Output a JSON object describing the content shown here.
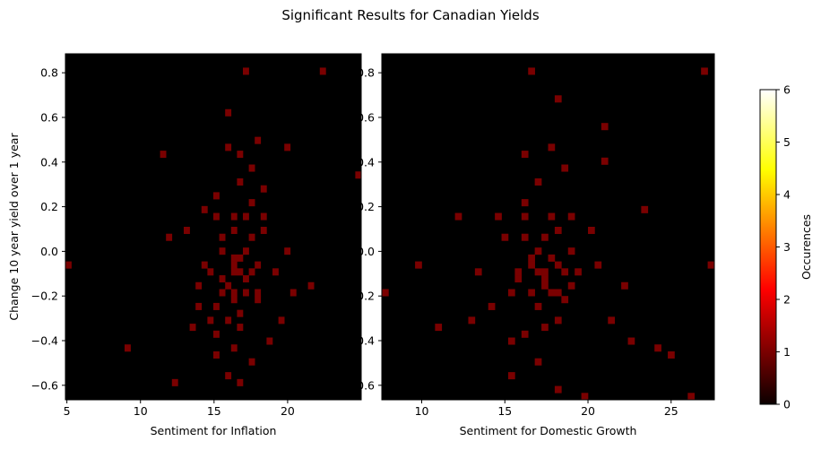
{
  "figure": {
    "title": "Significant Results for Canadian Yields"
  },
  "chart_data": [
    {
      "type": "heatmap",
      "xlabel": "Sentiment for Inflation",
      "ylabel": "Change 10 year yield over 1 year",
      "xlim": [
        4.9,
        25.0
      ],
      "ylim": [
        -0.665,
        0.885
      ],
      "xticks": [
        5,
        10,
        15,
        20
      ],
      "yticks": [
        -0.6,
        -0.4,
        -0.2,
        0.0,
        0.2,
        0.4,
        0.6,
        0.8
      ],
      "bins": [
        50,
        50
      ],
      "colormap": "hot",
      "points": [
        [
          15.5,
          0.0
        ],
        [
          16.2,
          -0.05
        ],
        [
          16.8,
          -0.1
        ],
        [
          17.3,
          -0.2
        ],
        [
          16.0,
          -0.15
        ],
        [
          15.2,
          -0.25
        ],
        [
          14.8,
          -0.1
        ],
        [
          17.8,
          -0.05
        ],
        [
          16.5,
          0.15
        ],
        [
          15.0,
          0.15
        ],
        [
          17.0,
          0.15
        ],
        [
          18.2,
          0.15
        ],
        [
          16.9,
          0.42
        ],
        [
          17.5,
          0.38
        ],
        [
          16.2,
          -0.42
        ],
        [
          15.8,
          -0.3
        ],
        [
          16.4,
          -0.08
        ],
        [
          17.1,
          -0.12
        ],
        [
          15.6,
          -0.18
        ],
        [
          18.0,
          -0.22
        ],
        [
          14.5,
          -0.05
        ],
        [
          13.8,
          -0.15
        ],
        [
          19.2,
          -0.1
        ],
        [
          20.0,
          0.0
        ],
        [
          21.5,
          -0.15
        ],
        [
          17.4,
          0.22
        ],
        [
          15.3,
          0.25
        ],
        [
          16.6,
          0.3
        ],
        [
          18.5,
          0.1
        ],
        [
          14.2,
          0.2
        ],
        [
          16.1,
          0.62
        ],
        [
          17.0,
          0.82
        ],
        [
          15.9,
          -0.55
        ],
        [
          16.8,
          -0.6
        ],
        [
          13.5,
          -0.35
        ],
        [
          19.5,
          -0.3
        ],
        [
          12.0,
          0.05
        ],
        [
          11.5,
          0.45
        ],
        [
          9.2,
          -0.42
        ],
        [
          5.0,
          -0.05
        ],
        [
          24.9,
          0.33
        ],
        [
          22.5,
          0.82
        ],
        [
          14.0,
          -0.25
        ],
        [
          18.8,
          -0.4
        ],
        [
          15.1,
          -0.45
        ],
        [
          16.3,
          -0.02
        ],
        [
          17.6,
          0.05
        ],
        [
          16.7,
          -0.28
        ],
        [
          15.4,
          -0.12
        ],
        [
          17.9,
          -0.18
        ],
        [
          16.5,
          -0.2
        ],
        [
          17.2,
          0.0
        ],
        [
          16.2,
          0.1
        ],
        [
          14.9,
          -0.32
        ],
        [
          18.3,
          0.28
        ],
        [
          13.2,
          0.1
        ],
        [
          20.5,
          -0.2
        ],
        [
          16.0,
          0.48
        ],
        [
          18.0,
          0.5
        ],
        [
          15.0,
          -0.38
        ],
        [
          16.9,
          -0.35
        ],
        [
          17.5,
          -0.48
        ],
        [
          12.5,
          -0.6
        ],
        [
          19.8,
          0.48
        ],
        [
          15.7,
          0.05
        ],
        [
          17.7,
          -0.08
        ],
        [
          16.4,
          -0.22
        ],
        [
          16.9,
          -0.04
        ]
      ]
    },
    {
      "type": "heatmap",
      "xlabel": "Sentiment for Domestic Growth",
      "ylabel": "Change 10 year yield over 1 year",
      "xlim": [
        7.6,
        27.6
      ],
      "ylim": [
        -0.665,
        0.885
      ],
      "xticks": [
        10,
        15,
        20,
        25
      ],
      "yticks": [
        -0.6,
        -0.4,
        -0.2,
        0.0,
        0.2,
        0.4,
        0.6,
        0.8
      ],
      "bins": [
        50,
        50
      ],
      "colormap": "hot",
      "points": [
        [
          17.0,
          -0.1
        ],
        [
          18.3,
          -0.05
        ],
        [
          16.5,
          -0.2
        ],
        [
          17.8,
          -0.2
        ],
        [
          16.8,
          0.0
        ],
        [
          18.9,
          -0.15
        ],
        [
          17.3,
          -0.12
        ],
        [
          15.8,
          -0.08
        ],
        [
          19.5,
          -0.1
        ],
        [
          16.2,
          0.23
        ],
        [
          17.6,
          0.15
        ],
        [
          18.5,
          0.38
        ],
        [
          20.8,
          0.41
        ],
        [
          16.3,
          -0.38
        ],
        [
          17.2,
          -0.35
        ],
        [
          15.5,
          -0.4
        ],
        [
          18.0,
          -0.3
        ],
        [
          17.5,
          0.05
        ],
        [
          16.0,
          0.15
        ],
        [
          19.0,
          0.15
        ],
        [
          14.5,
          0.15
        ],
        [
          12.0,
          0.15
        ],
        [
          13.5,
          -0.1
        ],
        [
          20.5,
          -0.05
        ],
        [
          22.0,
          -0.15
        ],
        [
          23.5,
          0.18
        ],
        [
          18.2,
          -0.62
        ],
        [
          19.8,
          -0.65
        ],
        [
          26.0,
          -0.65
        ],
        [
          27.0,
          0.82
        ],
        [
          7.8,
          -0.18
        ],
        [
          27.5,
          -0.05
        ],
        [
          16.5,
          -0.02
        ],
        [
          17.4,
          -0.08
        ],
        [
          18.7,
          -0.22
        ],
        [
          15.2,
          -0.18
        ],
        [
          17.0,
          0.3
        ],
        [
          16.1,
          0.45
        ],
        [
          17.9,
          0.48
        ],
        [
          15.5,
          -0.55
        ],
        [
          16.9,
          -0.48
        ],
        [
          14.0,
          -0.25
        ],
        [
          20.0,
          0.08
        ],
        [
          21.5,
          -0.3
        ],
        [
          13.0,
          -0.3
        ],
        [
          16.7,
          0.82
        ],
        [
          18.4,
          0.68
        ],
        [
          21.0,
          0.55
        ],
        [
          17.1,
          -0.25
        ],
        [
          18.1,
          -0.18
        ],
        [
          16.3,
          0.05
        ],
        [
          19.2,
          0.0
        ],
        [
          17.7,
          -0.02
        ],
        [
          15.9,
          -0.12
        ],
        [
          18.6,
          -0.1
        ],
        [
          17.2,
          -0.15
        ],
        [
          16.6,
          -0.06
        ],
        [
          18.0,
          0.1
        ],
        [
          15.0,
          0.05
        ],
        [
          24.0,
          -0.42
        ],
        [
          22.5,
          -0.4
        ],
        [
          25.0,
          -0.45
        ],
        [
          11.0,
          -0.33
        ],
        [
          9.8,
          -0.05
        ]
      ]
    }
  ],
  "colorbar": {
    "label": "Occurences",
    "ticks": [
      0,
      1,
      2,
      3,
      4,
      5,
      6
    ],
    "vmin": 0,
    "vmax": 6,
    "colormap": "hot"
  },
  "colors": {
    "background": "#000000",
    "page": "#ffffff"
  }
}
